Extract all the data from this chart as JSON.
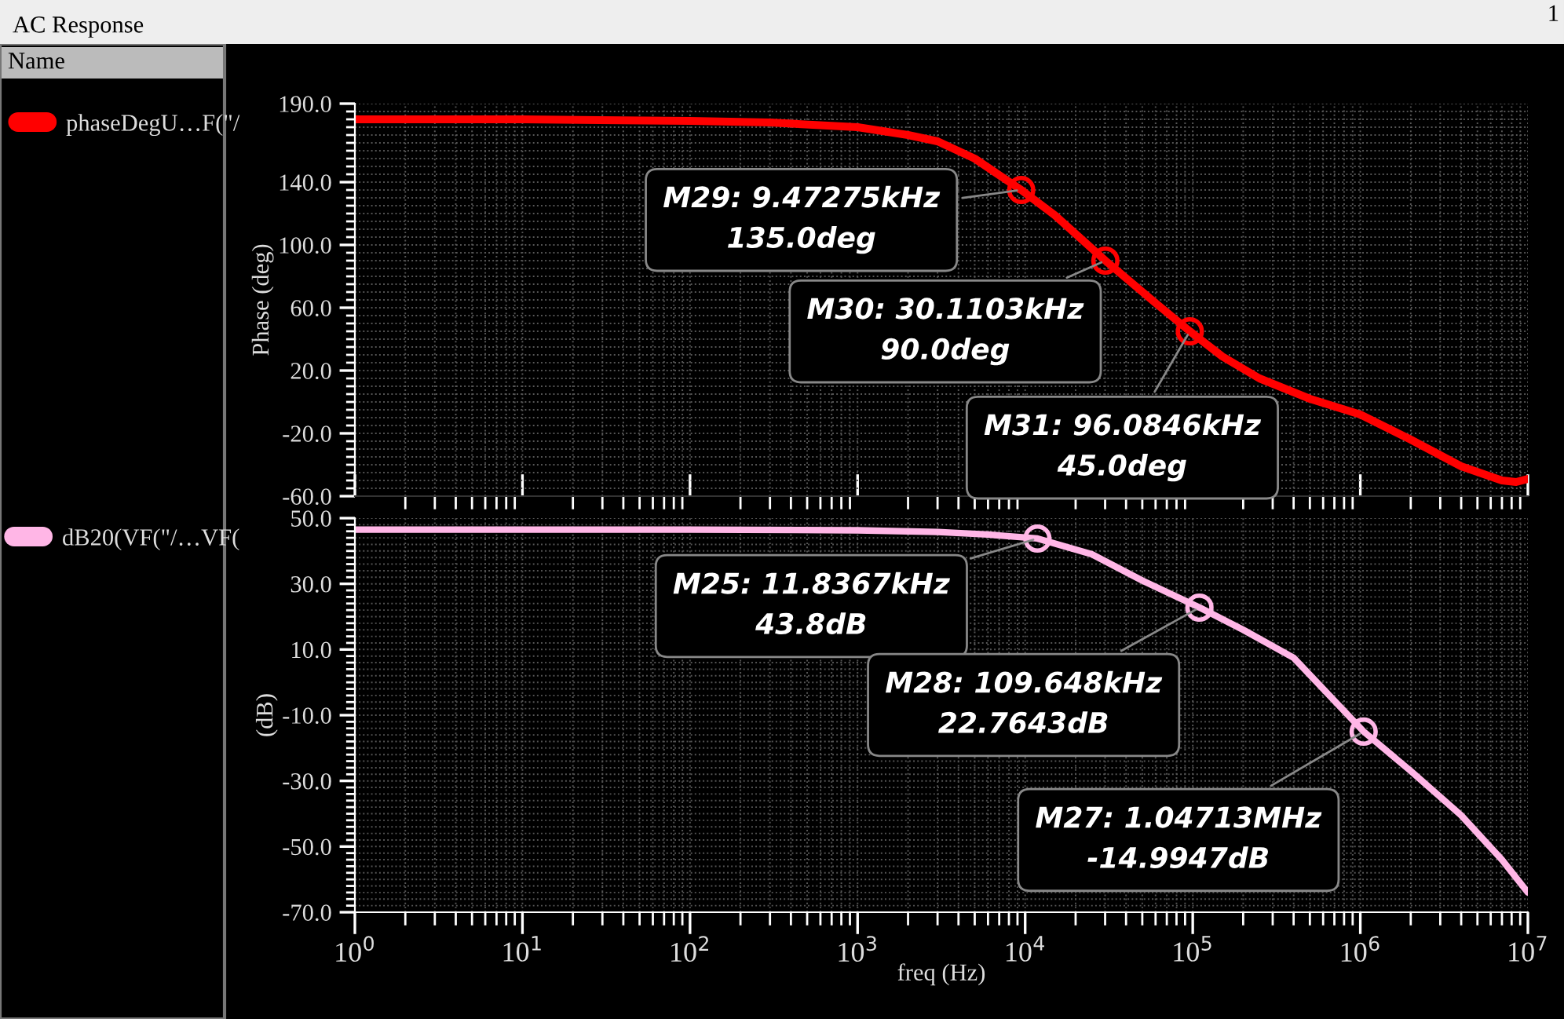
{
  "chart_data": [
    {
      "type": "line",
      "title": "AC Response",
      "legend_title": "Name",
      "legend": "left",
      "grid": true,
      "log": "x",
      "tick_labels": "y",
      "ylabel": "Phase (deg)",
      "xlim": [
        1,
        10000000
      ],
      "ylim": [
        -60,
        190
      ],
      "yticks": [
        {
          "value": -60,
          "label": "-60.0"
        },
        {
          "value": -20,
          "label": "-20.0"
        },
        {
          "value": 20,
          "label": "20.0"
        },
        {
          "value": 60,
          "label": "60.0"
        },
        {
          "value": 100,
          "label": "100.0"
        },
        {
          "value": 140,
          "label": "140.0"
        },
        {
          "value": 190,
          "label": "190.0"
        }
      ],
      "series": [
        {
          "name": "phaseDegU…F(\"/",
          "color": "#ff0000",
          "x": [
            1,
            10,
            100,
            300,
            1000,
            2000,
            3000,
            5000,
            9472.75,
            15000,
            30110.3,
            60000,
            96084.6,
            150000,
            250000,
            500000,
            1000000,
            2000000,
            4000000,
            7000000,
            8500000,
            10000000
          ],
          "values": [
            180,
            180,
            179,
            178,
            175,
            170,
            166,
            155,
            135,
            119,
            90,
            63,
            45,
            29,
            15,
            2,
            -8,
            -24,
            -41,
            -50,
            -51,
            -49
          ]
        }
      ],
      "annotations": [
        {
          "text": "M29: 9.47275kHz\n135.0deg",
          "x": 9472.75,
          "y": 135
        },
        {
          "text": "M30: 30.1103kHz\n90.0deg",
          "x": 30110.3,
          "y": 90
        },
        {
          "text": "M31: 96.0846kHz\n45.0deg",
          "x": 96084.6,
          "y": 45
        },
        "1"
      ]
    },
    {
      "type": "line",
      "legend": "left",
      "grid": true,
      "log": "x",
      "xlabel": "freq (Hz)",
      "ylabel": "(dB)",
      "xlim": [
        1,
        10000000
      ],
      "xticks": [
        {
          "value": 1,
          "label": "10$^{0}$"
        },
        {
          "value": 10,
          "label": "10$^{1}$"
        },
        {
          "value": 100,
          "label": "10$^{2}$"
        },
        {
          "value": 1000,
          "label": "10$^{3}$"
        },
        {
          "value": 10000,
          "label": "10$^{4}$"
        },
        {
          "value": 100000,
          "label": "10$^{5}$"
        },
        {
          "value": 1000000,
          "label": "10$^{6}$"
        },
        {
          "value": 10000000,
          "label": "10$^{7}$"
        }
      ],
      "ylim": [
        -70,
        50
      ],
      "yticks": [
        {
          "value": -70,
          "label": "-70.0"
        },
        {
          "value": -50,
          "label": "-50.0"
        },
        {
          "value": -30,
          "label": "-30.0"
        },
        {
          "value": -10,
          "label": "-10.0"
        },
        {
          "value": 10,
          "label": "10.0"
        },
        {
          "value": 30,
          "label": "30.0"
        },
        {
          "value": 50,
          "label": "50.0"
        }
      ],
      "series": [
        {
          "name": "dB20(VF(\"/…VF(",
          "color": "#ffb6e6",
          "x": [
            1,
            10,
            100,
            1000,
            3000,
            6000,
            11836.7,
            25000,
            50000,
            109648,
            200000,
            400000,
            1047130,
            2000000,
            4000000,
            7000000,
            10000000
          ],
          "values": [
            46.5,
            46.5,
            46.5,
            46.3,
            45.8,
            45,
            43.8,
            39,
            31,
            22.8,
            16,
            7.5,
            -15,
            -27,
            -40.5,
            -54,
            -64
          ]
        }
      ],
      "annotations": [
        {
          "text": "M25: 11.8367kHz\n43.8dB",
          "x": 11836.7,
          "y": 43.8
        },
        {
          "text": "M28: 109.648kHz\n22.7643dB",
          "x": 109648,
          "y": 22.7643
        },
        {
          "text": "M27: 1.04713MHz\n-14.9947dB",
          "x": 1047130,
          "y": -14.9947
        }
      ]
    }
  ]
}
